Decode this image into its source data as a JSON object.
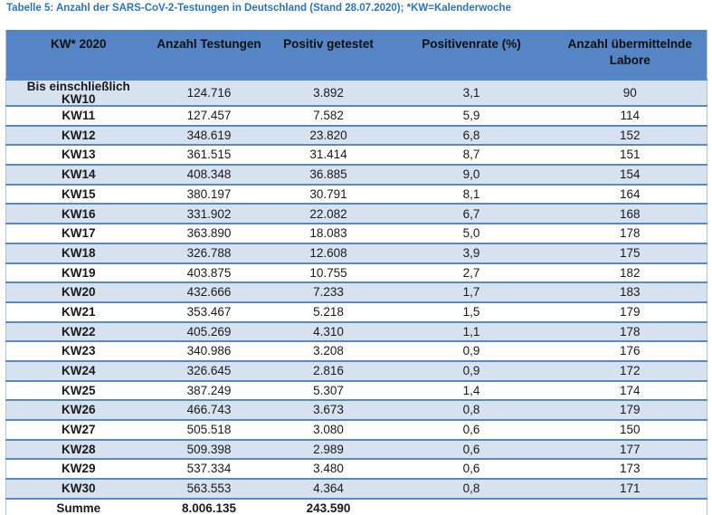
{
  "title": "Tabelle 5: Anzahl der SARS-CoV-2-Testungen in Deutschland (Stand 28.07.2020); *KW=Kalenderwoche",
  "colors": {
    "header_bg": "#5585C4",
    "band_bg": "#D7E2F0",
    "border": "#5B88BE",
    "title_color": "#2E74B5"
  },
  "table": {
    "headers": [
      "KW* 2020",
      "Anzahl Testungen",
      "Positiv getestet",
      "Positivenrate (%)",
      "Anzahl übermittelnde Labore"
    ],
    "rows": [
      [
        "Bis einschließlich KW10",
        "124.716",
        "3.892",
        "3,1",
        "90"
      ],
      [
        "KW11",
        "127.457",
        "7.582",
        "5,9",
        "114"
      ],
      [
        "KW12",
        "348.619",
        "23.820",
        "6,8",
        "152"
      ],
      [
        "KW13",
        "361.515",
        "31.414",
        "8,7",
        "151"
      ],
      [
        "KW14",
        "408.348",
        "36.885",
        "9,0",
        "154"
      ],
      [
        "KW15",
        "380.197",
        "30.791",
        "8,1",
        "164"
      ],
      [
        "KW16",
        "331.902",
        "22.082",
        "6,7",
        "168"
      ],
      [
        "KW17",
        "363.890",
        "18.083",
        "5,0",
        "178"
      ],
      [
        "KW18",
        "326.788",
        "12.608",
        "3,9",
        "175"
      ],
      [
        "KW19",
        "403.875",
        "10.755",
        "2,7",
        "182"
      ],
      [
        "KW20",
        "432.666",
        "7.233",
        "1,7",
        "183"
      ],
      [
        "KW21",
        "353.467",
        "5.218",
        "1,5",
        "179"
      ],
      [
        "KW22",
        "405.269",
        "4.310",
        "1,1",
        "178"
      ],
      [
        "KW23",
        "340.986",
        "3.208",
        "0,9",
        "176"
      ],
      [
        "KW24",
        "326.645",
        "2.816",
        "0,9",
        "172"
      ],
      [
        "KW25",
        "387.249",
        "5.307",
        "1,4",
        "174"
      ],
      [
        "KW26",
        "466.743",
        "3.673",
        "0,8",
        "179"
      ],
      [
        "KW27",
        "505.518",
        "3.080",
        "0,6",
        "150"
      ],
      [
        "KW28",
        "509.398",
        "2.989",
        "0,6",
        "177"
      ],
      [
        "KW29",
        "537.334",
        "3.480",
        "0,6",
        "173"
      ],
      [
        "KW30",
        "563.553",
        "4.364",
        "0,8",
        "171"
      ],
      [
        "Summe",
        "8.006.135",
        "243.590",
        "",
        ""
      ]
    ]
  }
}
